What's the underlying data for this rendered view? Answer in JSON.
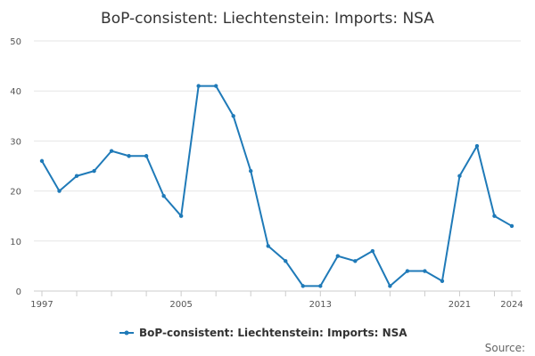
{
  "chart_data": {
    "type": "line",
    "title": "BoP-consistent: Liechtenstein: Imports: NSA",
    "xlabel": "",
    "ylabel": "",
    "xlim": [
      1997,
      2024
    ],
    "ylim": [
      0,
      50
    ],
    "yticks": [
      0,
      10,
      20,
      30,
      40,
      50
    ],
    "xticks": [
      1997,
      2005,
      2013,
      2021,
      2024
    ],
    "grid": true,
    "legend_position": "bottom",
    "series": [
      {
        "name": "BoP-consistent: Liechtenstein: Imports: NSA",
        "color": "#1f7ab8",
        "x": [
          1997,
          1998,
          1999,
          2000,
          2001,
          2002,
          2003,
          2004,
          2005,
          2006,
          2007,
          2008,
          2009,
          2010,
          2011,
          2012,
          2013,
          2014,
          2015,
          2016,
          2017,
          2018,
          2019,
          2020,
          2021,
          2022,
          2023,
          2024
        ],
        "values": [
          26,
          20,
          23,
          24,
          28,
          27,
          27,
          19,
          15,
          41,
          41,
          35,
          24,
          9,
          6,
          1,
          1,
          7,
          6,
          8,
          1,
          4,
          4,
          2,
          23,
          29,
          15,
          13
        ]
      }
    ]
  },
  "footer": {
    "source_label": "Source:"
  }
}
